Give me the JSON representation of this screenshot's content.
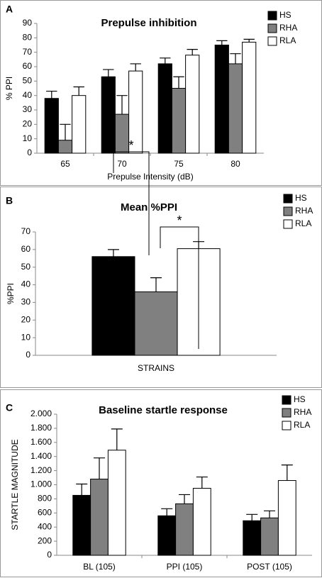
{
  "chart_data": [
    {
      "type": "bar",
      "panel": "A",
      "title": "Prepulse inhibition",
      "categories": [
        "65",
        "70",
        "75",
        "80"
      ],
      "series": [
        {
          "name": "HS",
          "color": "#000000",
          "values": [
            38,
            53,
            62,
            75
          ],
          "errors": [
            5,
            5,
            4,
            3
          ]
        },
        {
          "name": "RHA",
          "color": "#808080",
          "values": [
            9,
            27,
            45,
            62
          ],
          "errors": [
            11,
            13,
            8,
            7
          ]
        },
        {
          "name": "RLA",
          "color": "#ffffff",
          "values": [
            40,
            57,
            68,
            77
          ],
          "errors": [
            6,
            5,
            4,
            2
          ]
        }
      ],
      "xlabel": "Prepulse Intensity (dB)",
      "ylabel": "% PPI",
      "ylim": [
        0,
        90
      ],
      "yticks": [
        0,
        10,
        20,
        30,
        40,
        50,
        60,
        70,
        80,
        90
      ],
      "legend": "upper right"
    },
    {
      "type": "bar",
      "panel": "B",
      "title": "Mean %PPI",
      "categories": [
        "STRAINS"
      ],
      "series": [
        {
          "name": "HS",
          "color": "#000000",
          "values": [
            56
          ],
          "errors": [
            4
          ]
        },
        {
          "name": "RHA",
          "color": "#808080",
          "values": [
            36
          ],
          "errors": [
            8
          ]
        },
        {
          "name": "RLA",
          "color": "#ffffff",
          "values": [
            60.5
          ],
          "errors": [
            4
          ]
        }
      ],
      "ylabel": "%PPI",
      "annotations": [
        "*",
        "*"
      ],
      "ylim": [
        0,
        70
      ],
      "yticks": [
        0,
        10,
        20,
        30,
        40,
        50,
        60,
        70
      ],
      "legend": "upper right"
    },
    {
      "type": "bar",
      "panel": "C",
      "title": "Baseline startle response",
      "categories": [
        "BL (105)",
        "PPI (105)",
        "POST (105)"
      ],
      "series": [
        {
          "name": "HS",
          "color": "#000000",
          "values": [
            850,
            560,
            490
          ],
          "errors": [
            160,
            100,
            90
          ]
        },
        {
          "name": "RHA",
          "color": "#808080",
          "values": [
            1080,
            730,
            530
          ],
          "errors": [
            300,
            130,
            100
          ]
        },
        {
          "name": "RLA",
          "color": "#ffffff",
          "values": [
            1490,
            950,
            1060
          ],
          "errors": [
            300,
            160,
            220
          ]
        }
      ],
      "ylabel": "STARTLE MAGNITUDE",
      "ylim": [
        0,
        2000
      ],
      "yticks": [
        {
          "value": 0,
          "label": "0"
        },
        {
          "value": 200,
          "label": "200"
        },
        {
          "value": 400,
          "label": "400"
        },
        {
          "value": 600,
          "label": "600"
        },
        {
          "value": 800,
          "label": "800"
        },
        {
          "value": 1000,
          "label": "1.000"
        },
        {
          "value": 1200,
          "label": "1.200"
        },
        {
          "value": 1400,
          "label": "1.400"
        },
        {
          "value": 1600,
          "label": "1.600"
        },
        {
          "value": 1800,
          "label": "1.800"
        },
        {
          "value": 2000,
          "label": "2.000"
        }
      ],
      "legend": "upper right"
    }
  ]
}
